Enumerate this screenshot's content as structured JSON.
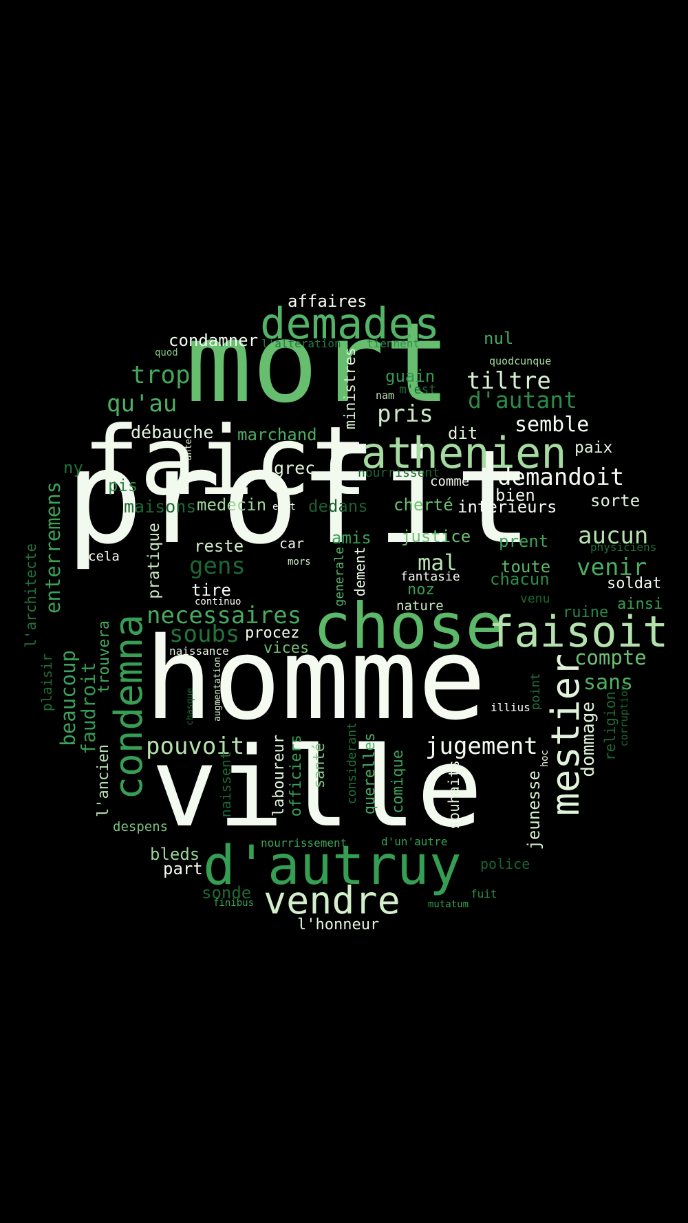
{
  "words": [
    {
      "text": "profit",
      "color": "#f2f9ee"
    },
    {
      "text": "mort",
      "color": "#66be6e"
    },
    {
      "text": "homme",
      "color": "#f5fbf1"
    },
    {
      "text": "ville",
      "color": "#f3faef"
    },
    {
      "text": "faict",
      "color": "#f2faee"
    },
    {
      "text": "chose",
      "color": "#5db96a"
    },
    {
      "text": "athenien",
      "color": "#a6dba0"
    },
    {
      "text": "d'autruy",
      "color": "#359e53"
    },
    {
      "text": "demades",
      "color": "#53b466"
    },
    {
      "text": "faisoit",
      "color": "#b2e1ac"
    },
    {
      "text": "vendre",
      "color": "#d3eecb"
    },
    {
      "text": "condemna",
      "color": "#379f55"
    },
    {
      "text": "mestier",
      "color": "#e2f3dc"
    },
    {
      "text": "affaires",
      "color": "#f4faf1"
    },
    {
      "text": "condamner",
      "color": "#f4fbf1"
    },
    {
      "text": "l'alteration",
      "color": "#24783c"
    },
    {
      "text": "tiennent",
      "color": "#2e8f4a"
    },
    {
      "text": "nul",
      "color": "#46ab5e"
    },
    {
      "text": "quod",
      "color": "#88c98a"
    },
    {
      "text": "quodcunque",
      "color": "#a6dba0"
    },
    {
      "text": "trop",
      "color": "#43a85c"
    },
    {
      "text": "ministres",
      "color": "#dcf1d6"
    },
    {
      "text": "guain",
      "color": "#339a51"
    },
    {
      "text": "m'est",
      "color": "#1c6a34"
    },
    {
      "text": "tiltre",
      "color": "#d7f0d0"
    },
    {
      "text": "d'autant",
      "color": "#2c8c47"
    },
    {
      "text": "qu'au",
      "color": "#4fb064"
    },
    {
      "text": "nam",
      "color": "#bfe5b8"
    },
    {
      "text": "pris",
      "color": "#cdebc5"
    },
    {
      "text": "semble",
      "color": "#f7fcf5"
    },
    {
      "text": "débauche",
      "color": "#e6f5e1"
    },
    {
      "text": "ante",
      "color": "#e2f3dc"
    },
    {
      "text": "marchand",
      "color": "#4bae62"
    },
    {
      "text": "dit",
      "color": "#e0f3db"
    },
    {
      "text": "paix",
      "color": "#e1f3dc"
    },
    {
      "text": "ny",
      "color": "#1f7139"
    },
    {
      "text": "grec",
      "color": "#e3f4de"
    },
    {
      "text": "nourrissent",
      "color": "#1b6632"
    },
    {
      "text": "demandoit",
      "color": "#f5fbf2"
    },
    {
      "text": "pis",
      "color": "#2c8a46"
    },
    {
      "text": "comme",
      "color": "#f5fbf2"
    },
    {
      "text": "bien",
      "color": "#ebf7e7"
    },
    {
      "text": "sorte",
      "color": "#e5f5e0"
    },
    {
      "text": "enterremens",
      "color": "#3aa358"
    },
    {
      "text": "maisons",
      "color": "#1c6833"
    },
    {
      "text": "medecin",
      "color": "#9dd797"
    },
    {
      "text": "exit",
      "color": "#f2faef"
    },
    {
      "text": "dedans",
      "color": "#1a5f30"
    },
    {
      "text": "cherté",
      "color": "#6abf70"
    },
    {
      "text": "interieurs",
      "color": "#f5fbf3"
    },
    {
      "text": "l'architecte",
      "color": "#21733a"
    },
    {
      "text": "cela",
      "color": "#f5fbf2"
    },
    {
      "text": "pratique",
      "color": "#c8e9c1"
    },
    {
      "text": "reste",
      "color": "#cfecc8"
    },
    {
      "text": "car",
      "color": "#eef8eb"
    },
    {
      "text": "amis",
      "color": "#3aa258"
    },
    {
      "text": "justice",
      "color": "#6dc072"
    },
    {
      "text": "prent",
      "color": "#3da45a"
    },
    {
      "text": "aucun",
      "color": "#b6e2af"
    },
    {
      "text": "physiciens",
      "color": "#1f7038"
    },
    {
      "text": "gens",
      "color": "#1c6733"
    },
    {
      "text": "generale",
      "color": "#57b668"
    },
    {
      "text": "dement",
      "color": "#eef8eb"
    },
    {
      "text": "mal",
      "color": "#b6e2af"
    },
    {
      "text": "toute",
      "color": "#5cb869"
    },
    {
      "text": "venir",
      "color": "#4aad61"
    },
    {
      "text": "mors",
      "color": "#d3eecb"
    },
    {
      "text": "fantasie",
      "color": "#f2faef"
    },
    {
      "text": "chacun",
      "color": "#2d8c48"
    },
    {
      "text": "soldat",
      "color": "#f4fbf1"
    },
    {
      "text": "tire",
      "color": "#f7fcf5"
    },
    {
      "text": "continuo",
      "color": "#f7fcf5"
    },
    {
      "text": "noz",
      "color": "#37a055"
    },
    {
      "text": "venu",
      "color": "#1b6632"
    },
    {
      "text": "nature",
      "color": "#cfecc8"
    },
    {
      "text": "ainsi",
      "color": "#35a052"
    },
    {
      "text": "ruine",
      "color": "#2a8845"
    },
    {
      "text": "necessaires",
      "color": "#47ab5f"
    },
    {
      "text": "plaisir",
      "color": "#1d6e36"
    },
    {
      "text": "trouvera",
      "color": "#43a95d"
    },
    {
      "text": "soubs",
      "color": "#21743a"
    },
    {
      "text": "procez",
      "color": "#f1faee"
    },
    {
      "text": "vices",
      "color": "#6ec074"
    },
    {
      "text": "compte",
      "color": "#6abf70"
    },
    {
      "text": "naissance",
      "color": "#e9f6e5"
    },
    {
      "text": "beaucoup",
      "color": "#3da45a"
    },
    {
      "text": "augmentation",
      "color": "#d8f0d2"
    },
    {
      "text": "point",
      "color": "#217339"
    },
    {
      "text": "sans",
      "color": "#4fb064"
    },
    {
      "text": "faudroit",
      "color": "#349d53"
    },
    {
      "text": "illius",
      "color": "#f7fcf5"
    },
    {
      "text": "chasque",
      "color": "#1b6a35"
    },
    {
      "text": "corruption",
      "color": "#1c6934"
    },
    {
      "text": "dommage",
      "color": "#dff3da"
    },
    {
      "text": "religion",
      "color": "#1c6a34"
    },
    {
      "text": "pouvoit",
      "color": "#b5e1ae"
    },
    {
      "text": "jugement",
      "color": "#f5fbf2"
    },
    {
      "text": "hoc",
      "color": "#eaf6e6"
    },
    {
      "text": "l'ancien",
      "color": "#b7e3b1"
    },
    {
      "text": "naissent",
      "color": "#1d6833"
    },
    {
      "text": "laboureur",
      "color": "#e3f4de"
    },
    {
      "text": "officiers",
      "color": "#39a157"
    },
    {
      "text": "santé",
      "color": "#83c787"
    },
    {
      "text": "considerant",
      "color": "#1f7038"
    },
    {
      "text": "querelles",
      "color": "#4bae62"
    },
    {
      "text": "comique",
      "color": "#3ba359"
    },
    {
      "text": "souhaits",
      "color": "#e4f4df"
    },
    {
      "text": "jeunesse",
      "color": "#d4eecd"
    },
    {
      "text": "despens",
      "color": "#7cc37e"
    },
    {
      "text": "nourrissement",
      "color": "#3da45a"
    },
    {
      "text": "d'un'autre",
      "color": "#34a055"
    },
    {
      "text": "bleds",
      "color": "#9ad496"
    },
    {
      "text": "part",
      "color": "#f3faf0"
    },
    {
      "text": "police",
      "color": "#1a6431"
    },
    {
      "text": "sonde",
      "color": "#1c6a34"
    },
    {
      "text": "fuit",
      "color": "#2c8c47"
    },
    {
      "text": "finibus",
      "color": "#3aa258"
    },
    {
      "text": "mutatum",
      "color": "#35a052"
    },
    {
      "text": "l'honneur",
      "color": "#e5f5e0"
    }
  ]
}
